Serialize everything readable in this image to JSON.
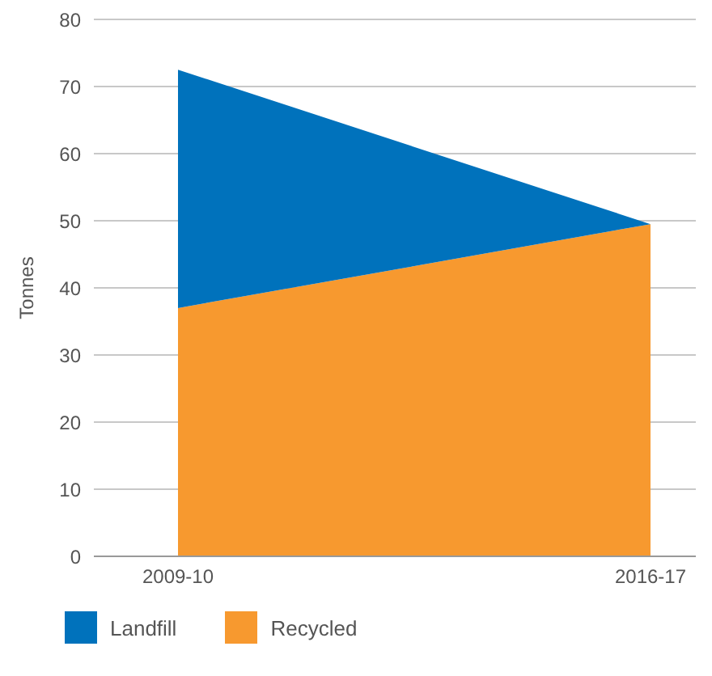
{
  "chart_data": {
    "type": "area",
    "stacked": true,
    "ylabel": "Tonnes",
    "categories": [
      "2009-10",
      "2016-17"
    ],
    "series": [
      {
        "name": "Recycled",
        "color": "#f7992f",
        "values": [
          37,
          49.5
        ]
      },
      {
        "name": "Landfill",
        "color": "#0072bc",
        "values": [
          35.5,
          0
        ]
      }
    ],
    "ylim": [
      0,
      80
    ],
    "yticks": [
      0,
      10,
      20,
      30,
      40,
      50,
      60,
      70,
      80
    ],
    "grid": "y",
    "legend": "bottom left"
  }
}
